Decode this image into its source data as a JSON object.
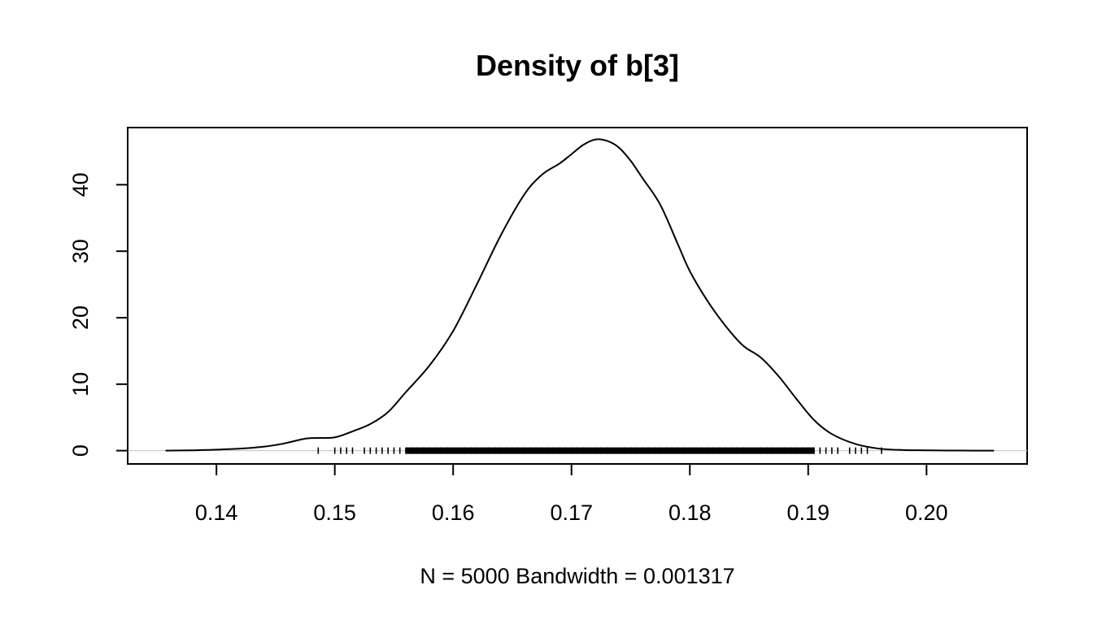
{
  "chart_data": {
    "type": "line",
    "title": "Density of b[3]",
    "xlabel": "N = 5000   Bandwidth = 0.001317",
    "ylabel": "",
    "xlim": [
      0.1325,
      0.2085
    ],
    "ylim": [
      -2,
      48.6
    ],
    "grid": false,
    "legend": "none",
    "x_ticks": [
      0.14,
      0.15,
      0.16,
      0.17,
      0.18,
      0.19,
      0.2
    ],
    "x_tick_labels": [
      "0.14",
      "0.15",
      "0.16",
      "0.17",
      "0.18",
      "0.19",
      "0.20"
    ],
    "y_ticks": [
      0,
      10,
      20,
      30,
      40
    ],
    "y_tick_labels": [
      "0",
      "10",
      "20",
      "30",
      "40"
    ],
    "line_color": "#000000",
    "baseline_color": "#cccccc",
    "series": [
      {
        "x": [
          0.1357,
          0.138,
          0.14,
          0.142,
          0.144,
          0.1455,
          0.1475,
          0.1485,
          0.15,
          0.1515,
          0.153,
          0.1545,
          0.156,
          0.158,
          0.16,
          0.162,
          0.164,
          0.166,
          0.1675,
          0.169,
          0.17,
          0.171,
          0.172,
          0.173,
          0.174,
          0.175,
          0.176,
          0.1775,
          0.179,
          0.18,
          0.1815,
          0.183,
          0.1845,
          0.186,
          0.1875,
          0.189,
          0.1905,
          0.192,
          0.194,
          0.196,
          0.198,
          0.2,
          0.203,
          0.2057
        ],
        "y": [
          0,
          0.05,
          0.15,
          0.3,
          0.6,
          1.0,
          1.8,
          1.9,
          2.0,
          2.9,
          4.0,
          5.8,
          8.8,
          12.8,
          18.0,
          25.0,
          32.3,
          38.5,
          41.5,
          43.2,
          44.6,
          46.0,
          46.8,
          46.6,
          45.6,
          43.6,
          41.0,
          37.0,
          31.0,
          27.0,
          22.5,
          18.8,
          15.8,
          14.0,
          11.2,
          7.8,
          4.6,
          2.5,
          1.0,
          0.3,
          0.1,
          0.05,
          0.01,
          0
        ]
      }
    ],
    "rug": {
      "points": [
        0.1486,
        0.15,
        0.1505,
        0.151,
        0.1515,
        0.1525,
        0.153,
        0.1535,
        0.154,
        0.1545,
        0.155,
        0.1555,
        0.156,
        0.1565,
        0.157,
        0.1575,
        0.158,
        0.1585,
        0.159,
        0.1595,
        0.16,
        0.1605,
        0.161,
        0.1615,
        0.162,
        0.1625,
        0.163,
        0.1635,
        0.164,
        0.1645,
        0.165,
        0.1655,
        0.166,
        0.1665,
        0.167,
        0.1675,
        0.168,
        0.1685,
        0.169,
        0.1695,
        0.17,
        0.1705,
        0.171,
        0.1715,
        0.172,
        0.1725,
        0.173,
        0.1735,
        0.174,
        0.1745,
        0.175,
        0.1755,
        0.176,
        0.1765,
        0.177,
        0.1775,
        0.178,
        0.1785,
        0.179,
        0.1795,
        0.18,
        0.1805,
        0.181,
        0.1815,
        0.182,
        0.1825,
        0.183,
        0.1835,
        0.184,
        0.1845,
        0.185,
        0.1855,
        0.186,
        0.1865,
        0.187,
        0.1875,
        0.188,
        0.1885,
        0.189,
        0.1895,
        0.19,
        0.1905,
        0.191,
        0.1915,
        0.192,
        0.1925,
        0.1935,
        0.194,
        0.1945,
        0.195,
        0.1962
      ]
    }
  }
}
